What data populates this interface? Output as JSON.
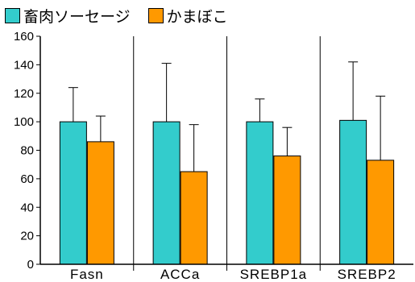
{
  "chart_data": {
    "type": "bar",
    "categories": [
      "Fasn",
      "ACCa",
      "SREBP1a",
      "SREBP2"
    ],
    "series": [
      {
        "name": "畜肉ソーセージ",
        "color": "#33cccc",
        "values": [
          100,
          100,
          100,
          101
        ],
        "errors": [
          24,
          41,
          16,
          41
        ]
      },
      {
        "name": "かまぼこ",
        "color": "#ff9900",
        "values": [
          86,
          65,
          76,
          73
        ],
        "errors": [
          18,
          33,
          20,
          45
        ]
      }
    ],
    "ylim": [
      0,
      160
    ],
    "yticks": [
      0,
      20,
      40,
      60,
      80,
      100,
      120,
      140,
      160
    ],
    "error_bars": true,
    "grid": false,
    "legend_position": "top-left"
  }
}
